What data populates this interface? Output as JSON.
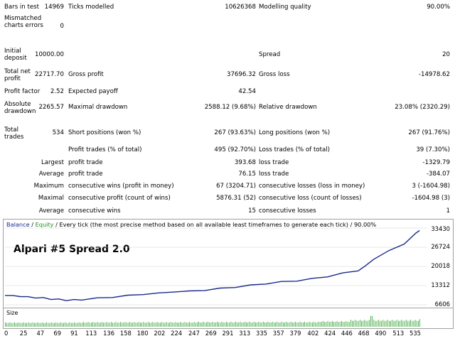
{
  "report": {
    "bars_label": "Bars in test",
    "bars_value": "14969",
    "ticks_label": "Ticks modelled",
    "ticks_value": "10626368",
    "quality_label": "Modelling quality",
    "quality_value": "90.00%",
    "mismatch_label": "Mismatched charts errors",
    "mismatch_value": "0",
    "deposit_label": "Initial deposit",
    "deposit_value": "10000.00",
    "spread_label": "Spread",
    "spread_value": "20",
    "net_label": "Total net profit",
    "net_value": "22717.70",
    "gross_profit_label": "Gross profit",
    "gross_profit_value": "37696.32",
    "gross_loss_label": "Gross loss",
    "gross_loss_value": "-14978.62",
    "pf_label": "Profit factor",
    "pf_value": "2.52",
    "payoff_label": "Expected payoff",
    "payoff_value": "42.54",
    "abs_dd_label": "Absolute drawdown",
    "abs_dd_value": "2265.57",
    "max_dd_label": "Maximal drawdown",
    "max_dd_value": "2588.12 (9.68%)",
    "rel_dd_label": "Relative drawdown",
    "rel_dd_value": "23.08% (2320.29)",
    "total_trades_label": "Total trades",
    "total_trades_value": "534",
    "short_label": "Short positions (won %)",
    "short_value": "267 (93.63%)",
    "long_label": "Long positions (won %)",
    "long_value": "267 (91.76%)",
    "profit_trades_label": "Profit trades (% of total)",
    "profit_trades_value": "495 (92.70%)",
    "loss_trades_label": "Loss trades (% of total)",
    "loss_trades_value": "39 (7.30%)",
    "largest_label": "Largest",
    "largest_profit_label": "profit trade",
    "largest_profit_value": "393.68",
    "largest_loss_label": "loss trade",
    "largest_loss_value": "-1329.79",
    "average_label": "Average",
    "average_profit_label": "profit trade",
    "average_profit_value": "76.15",
    "average_loss_label": "loss trade",
    "average_loss_value": "-384.07",
    "maximum_label": "Maximum",
    "max_cons_wins_label": "consecutive wins (profit in money)",
    "max_cons_wins_value": "67 (3204.71)",
    "max_cons_losses_label": "consecutive losses (loss in money)",
    "max_cons_losses_value": "3 (-1604.98)",
    "maximal_label": "Maximal",
    "maximal_profit_label": "consecutive profit (count of wins)",
    "maximal_profit_value": "5876.31 (52)",
    "maximal_loss_label": "consecutive loss (count of losses)",
    "maximal_loss_value": "-1604.98 (3)",
    "average2_label": "Average",
    "avg_cons_wins_label": "consecutive wins",
    "avg_cons_wins_value": "15",
    "avg_cons_losses_label": "consecutive losses",
    "avg_cons_losses_value": "1"
  },
  "chart_header": {
    "balance": "Balance",
    "sep1": " / ",
    "equity": "Equity",
    "rest": " / Every tick (the most precise method based on all available least timeframes to generate each tick) / 90.00%"
  },
  "overlay_title": "Alpari #5 Spread 2.0",
  "size_label": "Size",
  "colors": {
    "balance": "#1a2a8a",
    "equity": "#1f8f1f",
    "size_bars": "#2ca02c",
    "grid": "#d0d0d0"
  },
  "chart_data": {
    "type": "line",
    "y_ticks": [
      "33430",
      "26724",
      "20018",
      "13312",
      "6606"
    ],
    "y_tick_values": [
      33430,
      26724,
      20018,
      13312,
      6606
    ],
    "ylim": [
      6606,
      33430
    ],
    "x_ticks": [
      "0",
      "25",
      "47",
      "69",
      "91",
      "113",
      "136",
      "158",
      "180",
      "202",
      "224",
      "247",
      "269",
      "291",
      "313",
      "335",
      "357",
      "379",
      "402",
      "424",
      "446",
      "468",
      "490",
      "513",
      "535"
    ],
    "xlim": [
      0,
      550
    ],
    "series": [
      {
        "name": "Balance",
        "x": [
          0,
          10,
          20,
          30,
          40,
          50,
          60,
          70,
          80,
          90,
          100,
          120,
          140,
          160,
          180,
          200,
          220,
          240,
          260,
          280,
          300,
          320,
          340,
          360,
          380,
          400,
          420,
          440,
          460,
          470,
          480,
          500,
          520,
          535,
          540
        ],
        "values": [
          10000,
          9700,
          9600,
          9300,
          9100,
          9000,
          8600,
          8500,
          8200,
          8300,
          8400,
          8900,
          9300,
          9800,
          10300,
          10600,
          11200,
          11300,
          11700,
          12300,
          12800,
          13400,
          14000,
          14600,
          15000,
          15700,
          16500,
          17600,
          18600,
          20200,
          22600,
          25400,
          28000,
          31500,
          32700
        ]
      }
    ],
    "size_values": {
      "x_start": 0,
      "x_end": 540,
      "levels": [
        [
          0,
          0.35
        ],
        [
          100,
          0.38
        ],
        [
          250,
          0.4
        ],
        [
          410,
          0.45
        ],
        [
          450,
          0.55
        ],
        [
          475,
          1.0
        ],
        [
          480,
          0.55
        ],
        [
          540,
          0.6
        ]
      ]
    }
  }
}
